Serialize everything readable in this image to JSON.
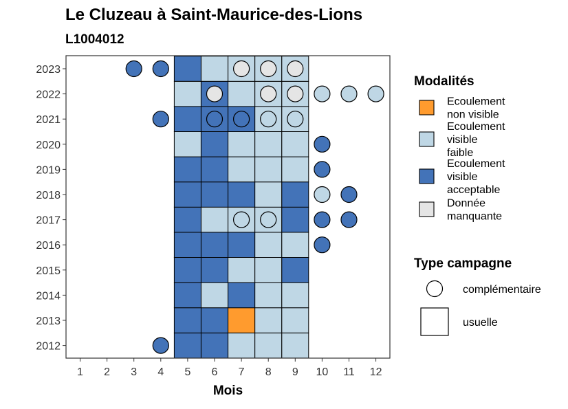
{
  "chart_data": {
    "type": "heatmap",
    "title": "Le Cluzeau à Saint-Maurice-des-Lions",
    "subtitle": "L1004012",
    "xlabel": "Mois",
    "ylabel": "",
    "x_ticks": [
      "1",
      "2",
      "3",
      "4",
      "5",
      "6",
      "7",
      "8",
      "9",
      "10",
      "11",
      "12"
    ],
    "y_ticks": [
      "2012",
      "2013",
      "2014",
      "2015",
      "2016",
      "2017",
      "2018",
      "2019",
      "2020",
      "2021",
      "2022",
      "2023"
    ],
    "grid": false,
    "legend_placement": "right",
    "modalities": [
      {
        "key": "nv",
        "label": "Ecoulement non visible",
        "label_lines": [
          "Ecoulement",
          "non visible"
        ],
        "color": "#FF9B2E"
      },
      {
        "key": "vf",
        "label": "Ecoulement visible faible",
        "label_lines": [
          "Ecoulement",
          "visible",
          "faible"
        ],
        "color": "#BFD7E5"
      },
      {
        "key": "va",
        "label": "Ecoulement visible acceptable",
        "label_lines": [
          "Ecoulement",
          "visible",
          "acceptable"
        ],
        "color": "#4373B8"
      },
      {
        "key": "dm",
        "label": "Donnée manquante",
        "label_lines": [
          "Donnée",
          "manquante"
        ],
        "color": "#E5E5E5"
      }
    ],
    "legend_modalites_title": "Modalités",
    "legend_campagne_title": "Type campagne",
    "campaign_types": [
      {
        "key": "complementaire",
        "label": "complémentaire",
        "shape": "circle"
      },
      {
        "key": "usuelle",
        "label": "usuelle",
        "shape": "square"
      }
    ],
    "observations": [
      {
        "year": 2012,
        "month": 4,
        "modalite": "va",
        "campagne": "complementaire"
      },
      {
        "year": 2012,
        "month": 5,
        "modalite": "va",
        "campagne": "usuelle"
      },
      {
        "year": 2012,
        "month": 6,
        "modalite": "va",
        "campagne": "usuelle"
      },
      {
        "year": 2012,
        "month": 7,
        "modalite": "vf",
        "campagne": "usuelle"
      },
      {
        "year": 2012,
        "month": 8,
        "modalite": "vf",
        "campagne": "usuelle"
      },
      {
        "year": 2012,
        "month": 9,
        "modalite": "vf",
        "campagne": "usuelle"
      },
      {
        "year": 2013,
        "month": 5,
        "modalite": "va",
        "campagne": "usuelle"
      },
      {
        "year": 2013,
        "month": 6,
        "modalite": "va",
        "campagne": "usuelle"
      },
      {
        "year": 2013,
        "month": 7,
        "modalite": "nv",
        "campagne": "usuelle"
      },
      {
        "year": 2013,
        "month": 8,
        "modalite": "vf",
        "campagne": "usuelle"
      },
      {
        "year": 2013,
        "month": 9,
        "modalite": "vf",
        "campagne": "usuelle"
      },
      {
        "year": 2014,
        "month": 5,
        "modalite": "va",
        "campagne": "usuelle"
      },
      {
        "year": 2014,
        "month": 6,
        "modalite": "vf",
        "campagne": "usuelle"
      },
      {
        "year": 2014,
        "month": 7,
        "modalite": "va",
        "campagne": "usuelle"
      },
      {
        "year": 2014,
        "month": 8,
        "modalite": "vf",
        "campagne": "usuelle"
      },
      {
        "year": 2014,
        "month": 9,
        "modalite": "vf",
        "campagne": "usuelle"
      },
      {
        "year": 2015,
        "month": 5,
        "modalite": "va",
        "campagne": "usuelle"
      },
      {
        "year": 2015,
        "month": 6,
        "modalite": "va",
        "campagne": "usuelle"
      },
      {
        "year": 2015,
        "month": 7,
        "modalite": "vf",
        "campagne": "usuelle"
      },
      {
        "year": 2015,
        "month": 8,
        "modalite": "vf",
        "campagne": "usuelle"
      },
      {
        "year": 2015,
        "month": 9,
        "modalite": "va",
        "campagne": "usuelle"
      },
      {
        "year": 2016,
        "month": 5,
        "modalite": "va",
        "campagne": "usuelle"
      },
      {
        "year": 2016,
        "month": 6,
        "modalite": "va",
        "campagne": "usuelle"
      },
      {
        "year": 2016,
        "month": 7,
        "modalite": "va",
        "campagne": "usuelle"
      },
      {
        "year": 2016,
        "month": 8,
        "modalite": "vf",
        "campagne": "usuelle"
      },
      {
        "year": 2016,
        "month": 9,
        "modalite": "vf",
        "campagne": "usuelle"
      },
      {
        "year": 2016,
        "month": 10,
        "modalite": "va",
        "campagne": "complementaire"
      },
      {
        "year": 2017,
        "month": 5,
        "modalite": "va",
        "campagne": "usuelle"
      },
      {
        "year": 2017,
        "month": 6,
        "modalite": "vf",
        "campagne": "usuelle"
      },
      {
        "year": 2017,
        "month": 7,
        "modalite": "vf",
        "campagne": "usuelle"
      },
      {
        "year": 2017,
        "month": 7,
        "modalite": "vf",
        "campagne": "complementaire"
      },
      {
        "year": 2017,
        "month": 8,
        "modalite": "vf",
        "campagne": "usuelle"
      },
      {
        "year": 2017,
        "month": 8,
        "modalite": "vf",
        "campagne": "complementaire"
      },
      {
        "year": 2017,
        "month": 9,
        "modalite": "va",
        "campagne": "usuelle"
      },
      {
        "year": 2017,
        "month": 10,
        "modalite": "va",
        "campagne": "complementaire"
      },
      {
        "year": 2017,
        "month": 11,
        "modalite": "va",
        "campagne": "complementaire"
      },
      {
        "year": 2018,
        "month": 5,
        "modalite": "va",
        "campagne": "usuelle"
      },
      {
        "year": 2018,
        "month": 6,
        "modalite": "va",
        "campagne": "usuelle"
      },
      {
        "year": 2018,
        "month": 7,
        "modalite": "va",
        "campagne": "usuelle"
      },
      {
        "year": 2018,
        "month": 8,
        "modalite": "vf",
        "campagne": "usuelle"
      },
      {
        "year": 2018,
        "month": 9,
        "modalite": "va",
        "campagne": "usuelle"
      },
      {
        "year": 2018,
        "month": 10,
        "modalite": "vf",
        "campagne": "complementaire"
      },
      {
        "year": 2018,
        "month": 11,
        "modalite": "va",
        "campagne": "complementaire"
      },
      {
        "year": 2019,
        "month": 5,
        "modalite": "va",
        "campagne": "usuelle"
      },
      {
        "year": 2019,
        "month": 6,
        "modalite": "va",
        "campagne": "usuelle"
      },
      {
        "year": 2019,
        "month": 7,
        "modalite": "vf",
        "campagne": "usuelle"
      },
      {
        "year": 2019,
        "month": 8,
        "modalite": "vf",
        "campagne": "usuelle"
      },
      {
        "year": 2019,
        "month": 9,
        "modalite": "vf",
        "campagne": "usuelle"
      },
      {
        "year": 2019,
        "month": 10,
        "modalite": "va",
        "campagne": "complementaire"
      },
      {
        "year": 2020,
        "month": 5,
        "modalite": "vf",
        "campagne": "usuelle"
      },
      {
        "year": 2020,
        "month": 6,
        "modalite": "va",
        "campagne": "usuelle"
      },
      {
        "year": 2020,
        "month": 7,
        "modalite": "vf",
        "campagne": "usuelle"
      },
      {
        "year": 2020,
        "month": 8,
        "modalite": "vf",
        "campagne": "usuelle"
      },
      {
        "year": 2020,
        "month": 9,
        "modalite": "vf",
        "campagne": "usuelle"
      },
      {
        "year": 2020,
        "month": 10,
        "modalite": "va",
        "campagne": "complementaire"
      },
      {
        "year": 2021,
        "month": 4,
        "modalite": "va",
        "campagne": "complementaire"
      },
      {
        "year": 2021,
        "month": 5,
        "modalite": "va",
        "campagne": "usuelle"
      },
      {
        "year": 2021,
        "month": 6,
        "modalite": "va",
        "campagne": "usuelle"
      },
      {
        "year": 2021,
        "month": 6,
        "modalite": "va",
        "campagne": "complementaire"
      },
      {
        "year": 2021,
        "month": 7,
        "modalite": "va",
        "campagne": "usuelle"
      },
      {
        "year": 2021,
        "month": 7,
        "modalite": "va",
        "campagne": "complementaire"
      },
      {
        "year": 2021,
        "month": 8,
        "modalite": "vf",
        "campagne": "usuelle"
      },
      {
        "year": 2021,
        "month": 8,
        "modalite": "vf",
        "campagne": "complementaire"
      },
      {
        "year": 2021,
        "month": 9,
        "modalite": "vf",
        "campagne": "usuelle"
      },
      {
        "year": 2021,
        "month": 9,
        "modalite": "vf",
        "campagne": "complementaire"
      },
      {
        "year": 2022,
        "month": 5,
        "modalite": "vf",
        "campagne": "usuelle"
      },
      {
        "year": 2022,
        "month": 6,
        "modalite": "va",
        "campagne": "usuelle"
      },
      {
        "year": 2022,
        "month": 6,
        "modalite": "dm",
        "campagne": "complementaire"
      },
      {
        "year": 2022,
        "month": 7,
        "modalite": "vf",
        "campagne": "usuelle"
      },
      {
        "year": 2022,
        "month": 8,
        "modalite": "vf",
        "campagne": "usuelle"
      },
      {
        "year": 2022,
        "month": 8,
        "modalite": "dm",
        "campagne": "complementaire"
      },
      {
        "year": 2022,
        "month": 9,
        "modalite": "vf",
        "campagne": "usuelle"
      },
      {
        "year": 2022,
        "month": 9,
        "modalite": "dm",
        "campagne": "complementaire"
      },
      {
        "year": 2022,
        "month": 10,
        "modalite": "vf",
        "campagne": "complementaire"
      },
      {
        "year": 2022,
        "month": 11,
        "modalite": "vf",
        "campagne": "complementaire"
      },
      {
        "year": 2022,
        "month": 12,
        "modalite": "vf",
        "campagne": "complementaire"
      },
      {
        "year": 2023,
        "month": 3,
        "modalite": "va",
        "campagne": "complementaire"
      },
      {
        "year": 2023,
        "month": 4,
        "modalite": "va",
        "campagne": "complementaire"
      },
      {
        "year": 2023,
        "month": 5,
        "modalite": "va",
        "campagne": "usuelle"
      },
      {
        "year": 2023,
        "month": 6,
        "modalite": "vf",
        "campagne": "usuelle"
      },
      {
        "year": 2023,
        "month": 7,
        "modalite": "vf",
        "campagne": "usuelle"
      },
      {
        "year": 2023,
        "month": 7,
        "modalite": "dm",
        "campagne": "complementaire"
      },
      {
        "year": 2023,
        "month": 8,
        "modalite": "vf",
        "campagne": "usuelle"
      },
      {
        "year": 2023,
        "month": 8,
        "modalite": "dm",
        "campagne": "complementaire"
      },
      {
        "year": 2023,
        "month": 9,
        "modalite": "vf",
        "campagne": "usuelle"
      },
      {
        "year": 2023,
        "month": 9,
        "modalite": "dm",
        "campagne": "complementaire"
      }
    ]
  }
}
